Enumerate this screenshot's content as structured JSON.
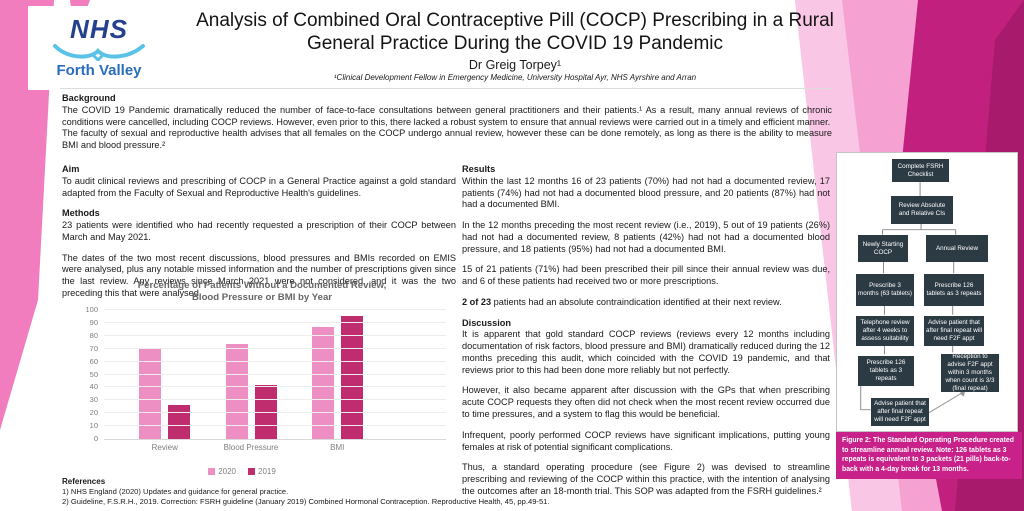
{
  "logo": {
    "nhs": "NHS",
    "org": "Forth Valley"
  },
  "header": {
    "title": "Analysis of Combined Oral Contraceptive Pill (COCP) Prescribing in a Rural General Practice During the COVID 19 Pandemic",
    "author": "Dr Greig Torpey¹",
    "affiliation": "¹Clinical Development Fellow in Emergency Medicine, University Hospital Ayr, NHS Ayrshire and Arran"
  },
  "background": {
    "heading": "Background",
    "p1": "The COVID 19 Pandemic dramatically reduced the number of face-to-face consultations between general practitioners and their patients.¹ As a result, many annual reviews of chronic conditions were cancelled, including COCP reviews. However, even prior to this, there lacked a robust system to ensure that annual reviews were carried out in a timely and efficient manner.",
    "p2": "The faculty of sexual and reproductive health advises that all females on the COCP undergo annual review, however these can be done remotely, as long as there is the ability to measure BMI and blood pressure.²"
  },
  "aim": {
    "heading": "Aim",
    "p1": "To audit clinical reviews and prescribing of COCP in a General Practice against a gold standard adapted from the Faculty of Sexual and Reproductive Health's guidelines."
  },
  "methods": {
    "heading": "Methods",
    "p1": "23 patients were identified who had recently requested a prescription of their COCP between March and May 2021.",
    "p2": "The dates of the two most recent discussions, blood pressures and BMIs recorded on EMIS were analysed, plus any notable missed information and the number of prescriptions given since the last review. Any reviews since March 2021 were not considered, and it was the two preceding this that were analysed."
  },
  "results": {
    "heading": "Results",
    "p1": "Within the last 12 months 16 of 23 patients (70%) had not had a documented review, 17 patients (74%) had not had a documented blood pressure, and 20 patients (87%) had not had a documented BMI.",
    "p2": "In the 12 months preceding the most recent review (i.e., 2019), 5 out of 19 patients (26%) had not had a documented review, 8 patients (42%) had not had a documented blood pressure, and 18 patients (95%) had not had a documented BMI.",
    "p3": "15 of 21 patients (71%) had been prescribed their pill since their annual review was due, and 6 of these patients had received two or more prescriptions.",
    "p4_bold": "2 of 23",
    "p4_rest": " patients had an absolute contraindication identified at their next review."
  },
  "discussion": {
    "heading": "Discussion",
    "p1": "It is apparent that gold standard COCP reviews (reviews every 12 months including documentation of risk factors, blood pressure and BMI) dramatically reduced during the 12 months preceding this audit, which coincided with the COVID 19 pandemic, and that reviews prior to this had been done more reliably but not perfectly.",
    "p2": "However, it also became apparent after discussion with the GPs that when prescribing acute COCP requests they often did not check when the most recent review occurred due to time pressures, and a system to flag this would be beneficial.",
    "p3": "Infrequent, poorly performed COCP reviews have significant implications, putting young females at risk of potential significant complications.",
    "p4": "Thus, a standard operating procedure (see Figure 2) was devised to streamline prescribing and reviewing of the COCP within this practice, with the intention of analysing the outcomes after an 18-month trial. This SOP was adapted from the FSRH guidelines.²"
  },
  "references": {
    "heading": "References",
    "items": [
      "1) NHS England (2020) Updates and guidance for general practice.",
      "2) Guideline, F.S.R.H., 2019. Correction: FSRH guideline (January 2019) Combined Hormonal Contraception. Reproductive Health, 45, pp.49-51."
    ]
  },
  "chart_data": {
    "type": "bar",
    "title_line1": "Percentage of Patients Without a Documented Review,",
    "title_line2": "Blood Pressure or BMI by Year",
    "categories": [
      "Review",
      "Blood Pressure",
      "BMI"
    ],
    "series": [
      {
        "name": "2020",
        "color": "#EE8FC4",
        "values": [
          70,
          74,
          87
        ]
      },
      {
        "name": "2019",
        "color": "#C02D6F",
        "values": [
          26,
          42,
          95
        ]
      }
    ],
    "ylim": [
      0,
      100
    ],
    "ytick": 10,
    "grid": true,
    "legend_position": "bottom"
  },
  "figure2": {
    "boxes": {
      "checklist": "Complete FSRH Checklist",
      "cis": "Review Absolute and Relative CIs",
      "newly": "Newly Starting COCP",
      "annual": "Annual Review",
      "presc3": "Prescribe 3 months (63 tablets)",
      "presc126_right": "Prescribe 126 tablets as 3 repeats",
      "telephone": "Telephone review after 4 weeks to assess suitability",
      "advise_right": "Advise patient that after final repeat will need F2F appt",
      "presc126_left": "Prescribe 126 tablets as 3 repeats",
      "reception": "Reception to advise F2F appt within 3 months when count is 3/3 (final repeat)",
      "advise_left": "Advise patient that after final repeat will need F2F appt"
    },
    "caption_label": "Figure 2:",
    "caption_text": " The Standard Operating Procedure created to streamline annual review. Note: 126 tablets as 3 repeats is equivalent to 3 packets (21 pills) back-to-back with a 4-day break for 13 months."
  }
}
